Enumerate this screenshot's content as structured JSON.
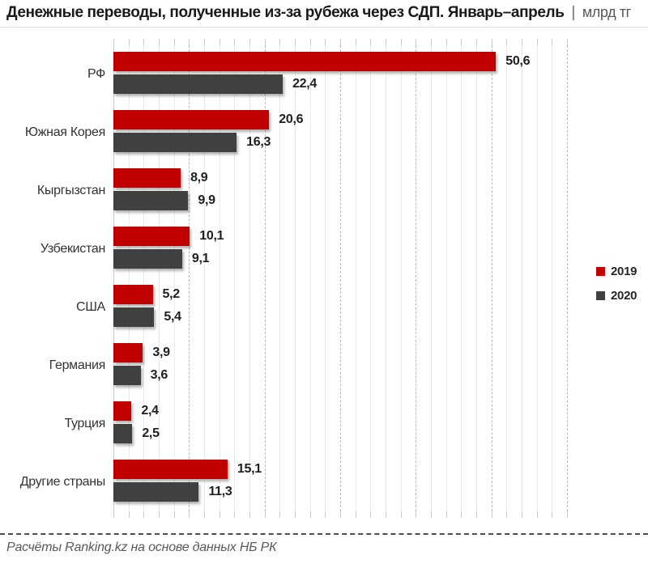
{
  "header": {
    "title": "Денежные переводы, полученные из-за рубежа через СДП. Январь–апрель",
    "separator": "|",
    "unit": "млрд тг"
  },
  "chart_data": {
    "type": "bar",
    "orientation": "horizontal",
    "title": "Денежные переводы, полученные из-за рубежа через СДП. Январь–апрель",
    "unit": "млрд тг",
    "categories": [
      "РФ",
      "Южная Корея",
      "Кыргызстан",
      "Узбекистан",
      "США",
      "Германия",
      "Турция",
      "Другие страны"
    ],
    "series": [
      {
        "name": "2019",
        "color": "#c00000",
        "values": [
          50.6,
          20.6,
          8.9,
          10.1,
          5.2,
          3.9,
          2.4,
          15.1
        ]
      },
      {
        "name": "2020",
        "color": "#404040",
        "values": [
          22.4,
          16.3,
          9.9,
          9.1,
          5.4,
          3.6,
          2.5,
          11.3
        ]
      }
    ],
    "xlim": [
      0,
      60
    ],
    "grid": {
      "major_step": 10,
      "minor_step": 2,
      "major_style": "dashed",
      "minor_style": "solid"
    },
    "value_label_decimal_separator": ",",
    "data_labels": "outside-end, bold",
    "legend_position": "right-middle",
    "bar_shadow": true
  },
  "legend": {
    "items": [
      {
        "label": "2019",
        "color": "#c00000"
      },
      {
        "label": "2020",
        "color": "#404040"
      }
    ]
  },
  "footer": {
    "source": "Расчёты Ranking.kz на основе данных НБ РК"
  }
}
